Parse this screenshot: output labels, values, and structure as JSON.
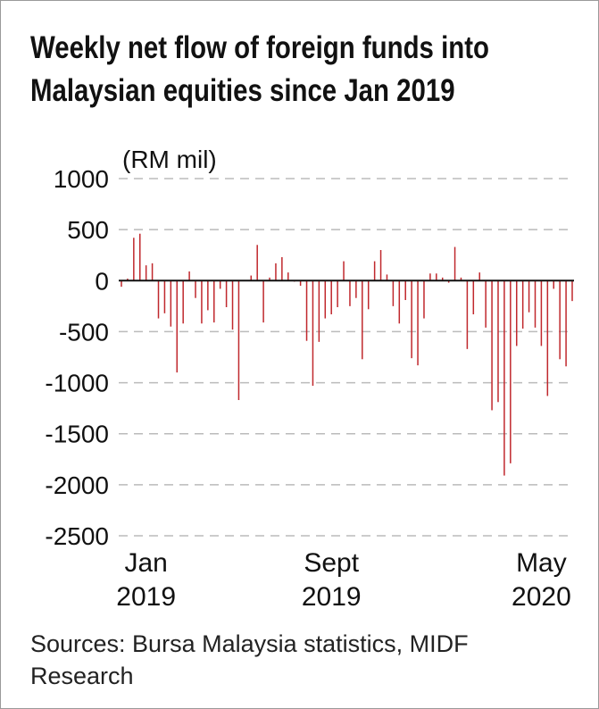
{
  "chart_data": {
    "type": "bar",
    "title": "Weekly net flow of foreign funds into Malaysian equities since Jan 2019",
    "y_label": "(RM mil)",
    "source": "Sources: Bursa Malaysia statistics, MIDF Research",
    "color": "#c0282d",
    "grid": true,
    "ylim": [
      -2500,
      1000
    ],
    "yticks": [
      1000,
      500,
      0,
      -500,
      -1000,
      -1500,
      -2000,
      -2500
    ],
    "categories": [
      null,
      null,
      null,
      null,
      "Jan 2019",
      null,
      null,
      null,
      null,
      null,
      null,
      null,
      null,
      null,
      null,
      null,
      null,
      null,
      null,
      null,
      null,
      null,
      null,
      null,
      null,
      null,
      null,
      null,
      null,
      null,
      null,
      null,
      null,
      null,
      "Sept 2019",
      null,
      null,
      null,
      null,
      null,
      null,
      null,
      null,
      null,
      null,
      null,
      null,
      null,
      null,
      null,
      null,
      null,
      null,
      null,
      null,
      null,
      null,
      null,
      null,
      null,
      null,
      null,
      null,
      null,
      null,
      null,
      null,
      null,
      "May 2020",
      null,
      null,
      null,
      null,
      null
    ],
    "values": [
      -60,
      20,
      420,
      460,
      150,
      170,
      -370,
      -320,
      -450,
      -900,
      -420,
      90,
      -170,
      -420,
      -290,
      -410,
      -80,
      -260,
      -480,
      -1170,
      -5,
      50,
      350,
      -410,
      30,
      170,
      230,
      80,
      -10,
      -50,
      -590,
      -1030,
      -600,
      -370,
      -330,
      -260,
      190,
      -250,
      -170,
      -770,
      -280,
      190,
      300,
      60,
      -250,
      -420,
      -190,
      -760,
      -830,
      -370,
      70,
      70,
      30,
      -20,
      330,
      30,
      -670,
      -330,
      80,
      -460,
      -1270,
      -1190,
      -1910,
      -1790,
      -640,
      -470,
      -310,
      -460,
      -640,
      -1130,
      -80,
      -770,
      -840,
      -200
    ]
  }
}
